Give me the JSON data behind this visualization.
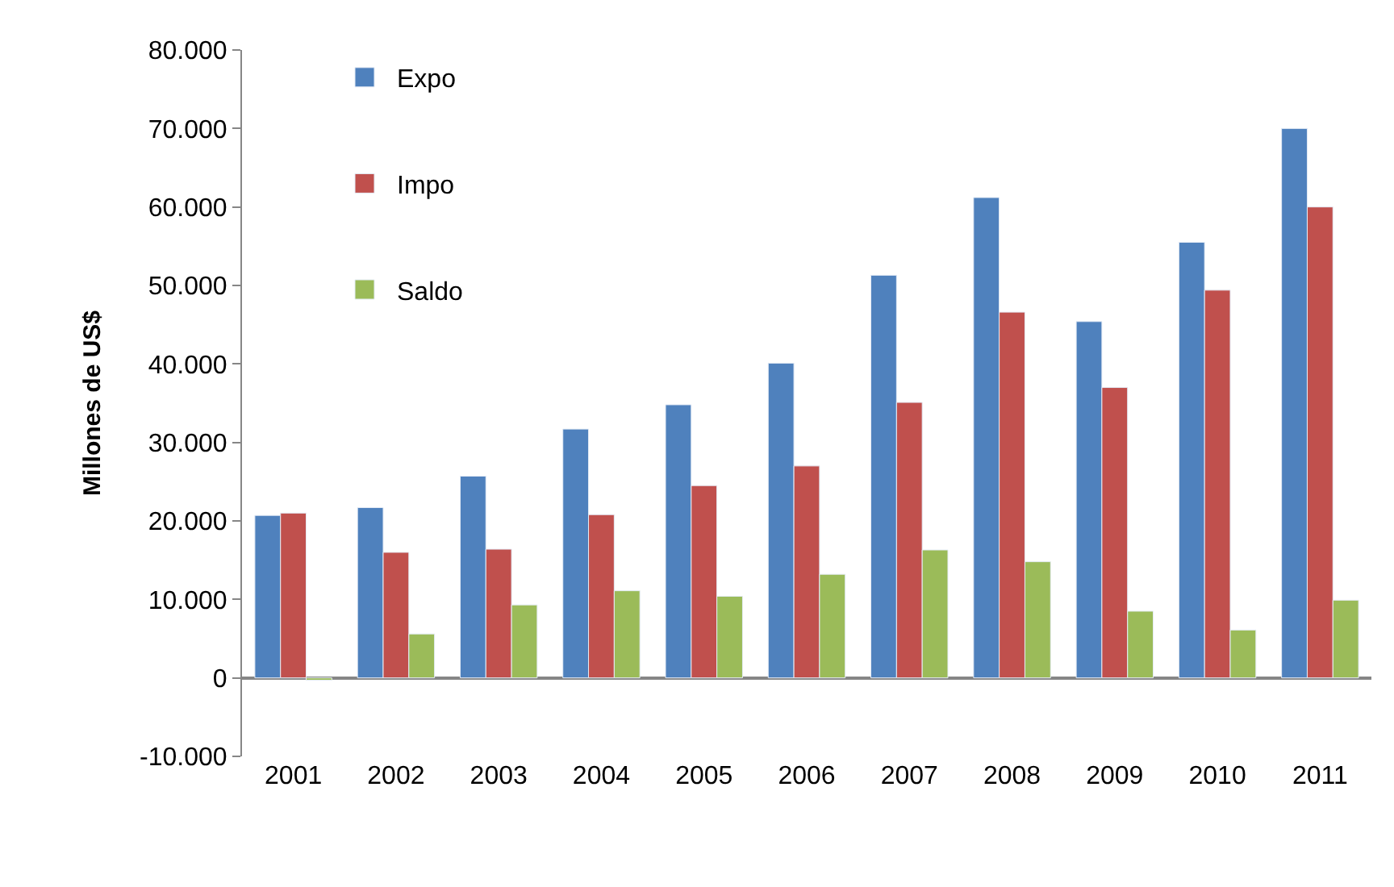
{
  "chart_data": {
    "type": "bar",
    "ylabel": "Millones de US$",
    "categories": [
      "2001",
      "2002",
      "2003",
      "2004",
      "2005",
      "2006",
      "2007",
      "2008",
      "2009",
      "2010",
      "2011"
    ],
    "series": [
      {
        "name": "Expo",
        "color": "#4f81bd",
        "values": [
          20700,
          21700,
          25700,
          31700,
          34800,
          40100,
          51300,
          61200,
          45400,
          55500,
          70000
        ]
      },
      {
        "name": "Impo",
        "color": "#c0504d",
        "values": [
          21000,
          16000,
          16400,
          20800,
          24500,
          27000,
          35100,
          46600,
          37000,
          49400,
          60000
        ]
      },
      {
        "name": "Saldo",
        "color": "#9bbb59",
        "values": [
          -300,
          5600,
          9300,
          11100,
          10400,
          13200,
          16300,
          14800,
          8500,
          6100,
          9900
        ]
      }
    ],
    "ylim": [
      -10000,
      80000
    ],
    "yticks": [
      {
        "value": -10000,
        "label": "-10.000"
      },
      0,
      {
        "value": 10000,
        "label": "10.000"
      },
      {
        "value": 20000,
        "label": "20.000"
      },
      {
        "value": 30000,
        "label": "30.000"
      },
      {
        "value": 40000,
        "label": "40.000"
      },
      {
        "value": 50000,
        "label": "50.000"
      },
      {
        "value": 60000,
        "label": "60.000"
      },
      {
        "value": 70000,
        "label": "70.000"
      },
      {
        "value": 80000,
        "label": "80.000"
      }
    ],
    "legend": "top left"
  }
}
